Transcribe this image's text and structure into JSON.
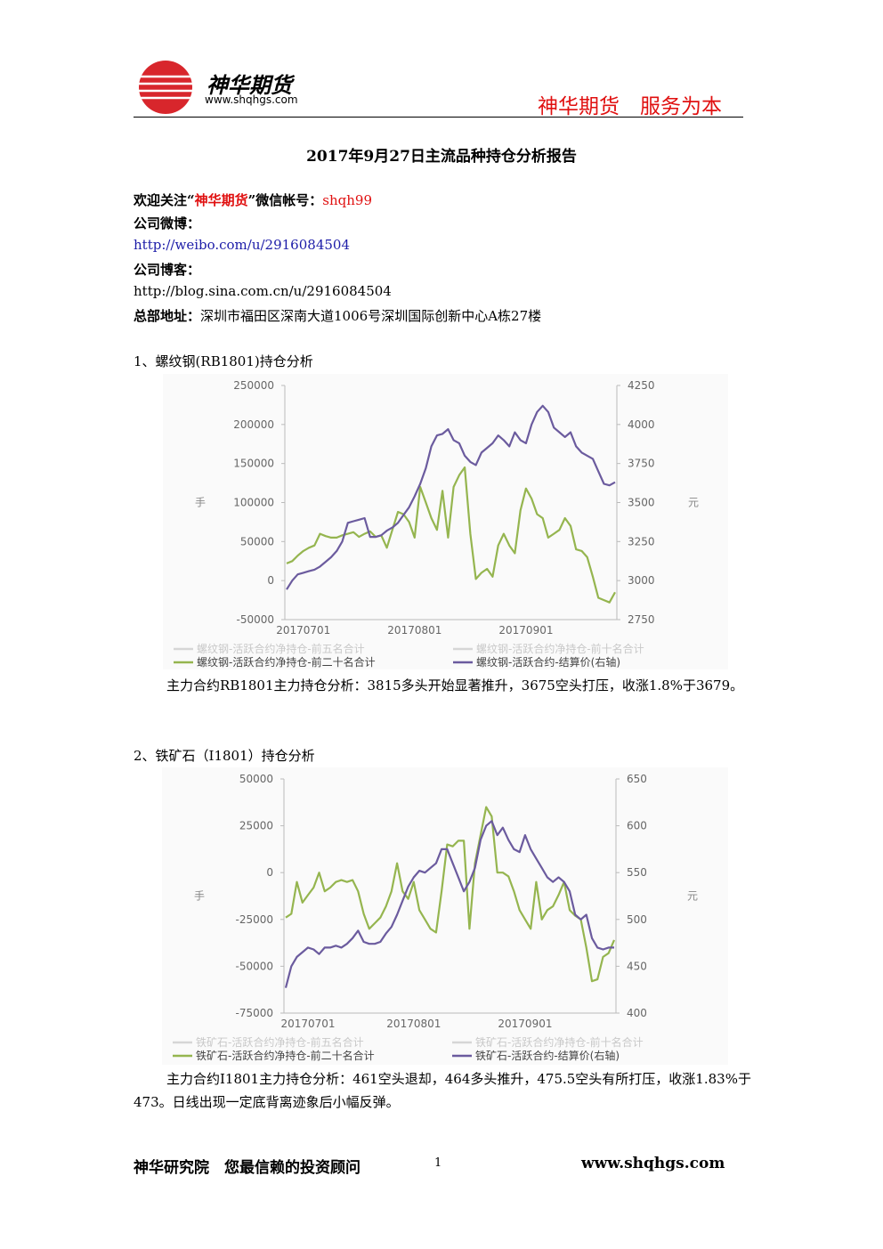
{
  "header": {
    "logo_name": "神华期货",
    "logo_url": "www.shqhgs.com",
    "slogan": "神华期货　服务为本"
  },
  "title": "2017年9月27日主流品种持仓分析报告",
  "intro": {
    "wechat": {
      "prefix": "欢迎关注“",
      "name": "神华期货",
      "middle": "”微信帐号：",
      "account": "shqh99"
    },
    "weibo_label": "公司微博：",
    "weibo_url": "http://weibo.com/u/2916084504",
    "blog_label": "公司博客：",
    "blog_url": "http://blog.sina.com.cn/u/2916084504",
    "address_label": "总部地址：",
    "address": "深圳市福田区深南大道1006号深圳国际创新中心A栋27楼"
  },
  "sections": [
    {
      "heading": "1、螺纹钢(RB1801)持仓分析",
      "analysis": "主力合约RB1801主力持仓分析：3815多头开始显著推升，3675空头打压，收涨1.8%于3679。"
    },
    {
      "heading": "2、铁矿石（I1801）持仓分析",
      "analysis": "主力合约I1801主力持仓分析：461空头退却，464多头推升，475.5空头有所打压，收涨1.83%于473。日线出现一定底背离迹象后小幅反弹。"
    }
  ],
  "footer": {
    "left": "神华研究院　您最信赖的投资顾问",
    "page": "1",
    "url": "www.shqhgs.com"
  },
  "chart_data": [
    {
      "type": "line",
      "ylabel": "手",
      "y2label": "元",
      "grid": false,
      "ylim": [
        -50000,
        250000
      ],
      "yticks": [
        -50000,
        0,
        50000,
        100000,
        150000,
        200000,
        250000
      ],
      "y2lim": [
        2750,
        4250
      ],
      "y2ticks": [
        2750,
        3000,
        3250,
        3500,
        3750,
        4000,
        4250
      ],
      "categories": [
        null,
        null,
        null,
        "20170701",
        null,
        null,
        null,
        null,
        null,
        null,
        null,
        null,
        null,
        null,
        null,
        null,
        null,
        null,
        null,
        null,
        null,
        null,
        null,
        "20170801",
        null,
        null,
        null,
        null,
        null,
        null,
        null,
        null,
        null,
        null,
        null,
        null,
        null,
        null,
        null,
        null,
        null,
        null,
        null,
        "20170901",
        null,
        null,
        null,
        null,
        null,
        null,
        null,
        null,
        null,
        null,
        null,
        null,
        null,
        null,
        null,
        null
      ],
      "series": [
        {
          "name": "螺纹钢-活跃合约净持仓-前五名合计",
          "color": "#d6d6d6",
          "values": [
            null,
            null,
            null,
            null,
            null,
            null,
            null,
            null,
            null,
            null,
            null,
            null,
            null,
            null,
            null,
            null,
            null,
            null,
            null,
            null,
            null,
            null,
            null,
            null,
            null,
            null,
            null,
            null,
            null,
            null,
            null,
            null,
            null,
            null,
            null,
            null,
            null,
            null,
            null,
            null,
            null,
            null,
            null,
            null,
            null,
            null,
            null,
            null,
            null,
            null,
            null,
            null,
            null,
            null,
            null,
            null,
            null,
            null,
            null,
            null
          ]
        },
        {
          "name": "螺纹钢-活跃合约净持仓-前十名合计",
          "color": "#d6d6d6",
          "values": [
            null,
            null,
            null,
            null,
            null,
            null,
            null,
            null,
            null,
            null,
            null,
            null,
            null,
            null,
            null,
            null,
            null,
            null,
            null,
            null,
            null,
            null,
            null,
            null,
            null,
            null,
            null,
            null,
            null,
            null,
            null,
            null,
            null,
            null,
            null,
            null,
            null,
            null,
            null,
            null,
            null,
            null,
            null,
            null,
            null,
            null,
            null,
            null,
            null,
            null,
            null,
            null,
            null,
            null,
            null,
            null,
            null,
            null,
            null,
            null
          ]
        },
        {
          "name": "螺纹钢-活跃合约净持仓-前二十名合计",
          "color": "#95b54f",
          "values": [
            22000,
            25000,
            32000,
            38000,
            42000,
            45000,
            60000,
            57000,
            55000,
            55000,
            58000,
            60000,
            62000,
            56000,
            60000,
            63000,
            56000,
            58000,
            42000,
            65000,
            88000,
            85000,
            75000,
            55000,
            120000,
            100000,
            80000,
            65000,
            115000,
            55000,
            120000,
            135000,
            145000,
            60000,
            2000,
            10000,
            15000,
            5000,
            45000,
            60000,
            45000,
            35000,
            90000,
            118000,
            105000,
            85000,
            80000,
            55000,
            60000,
            65000,
            80000,
            70000,
            40000,
            38000,
            30000,
            5000,
            -22000,
            -25000,
            -28000,
            -15000
          ]
        },
        {
          "name": "螺纹钢-活跃合约-结算价(右轴)",
          "color": "#6b5b9e",
          "axis": "y2",
          "values": [
            2943,
            3000,
            3040,
            3050,
            3060,
            3070,
            3090,
            3120,
            3150,
            3190,
            3250,
            3370,
            3380,
            3390,
            3400,
            3280,
            3280,
            3290,
            3320,
            3340,
            3370,
            3420,
            3470,
            3540,
            3620,
            3720,
            3860,
            3930,
            3940,
            3970,
            3900,
            3880,
            3800,
            3760,
            3740,
            3820,
            3850,
            3880,
            3930,
            3900,
            3860,
            3950,
            3900,
            3880,
            4000,
            4080,
            4120,
            4080,
            3980,
            3950,
            3920,
            3950,
            3860,
            3820,
            3800,
            3780,
            3700,
            3620,
            3610,
            3630
          ]
        }
      ]
    },
    {
      "type": "line",
      "ylabel": "手",
      "y2label": "元",
      "grid": false,
      "ylim": [
        -75000,
        50000
      ],
      "yticks": [
        -75000,
        -50000,
        -25000,
        0,
        25000,
        50000
      ],
      "y2lim": [
        400,
        650
      ],
      "y2ticks": [
        400,
        450,
        500,
        550,
        600,
        650
      ],
      "categories": [
        null,
        null,
        null,
        null,
        "20170701",
        null,
        null,
        null,
        null,
        null,
        null,
        null,
        null,
        null,
        null,
        null,
        null,
        null,
        null,
        null,
        null,
        null,
        null,
        "20170801",
        null,
        null,
        null,
        null,
        null,
        null,
        null,
        null,
        null,
        null,
        null,
        null,
        null,
        null,
        null,
        null,
        null,
        null,
        null,
        "20170901",
        null,
        null,
        null,
        null,
        null,
        null,
        null,
        null,
        null,
        null,
        null,
        null,
        null,
        null,
        null,
        null
      ],
      "series": [
        {
          "name": "铁矿石-活跃合约净持仓-前五名合计",
          "color": "#d6d6d6",
          "values": [
            null,
            null,
            null,
            null,
            null,
            null,
            null,
            null,
            null,
            null,
            null,
            null,
            null,
            null,
            null,
            null,
            null,
            null,
            null,
            null,
            null,
            null,
            null,
            null,
            null,
            null,
            null,
            null,
            null,
            null,
            null,
            null,
            null,
            null,
            null,
            null,
            null,
            null,
            null,
            null,
            null,
            null,
            null,
            null,
            null,
            null,
            null,
            null,
            null,
            null,
            null,
            null,
            null,
            null,
            null,
            null,
            null,
            null,
            null,
            null
          ]
        },
        {
          "name": "铁矿石-活跃合约净持仓-前十名合计",
          "color": "#d6d6d6",
          "values": [
            null,
            null,
            null,
            null,
            null,
            null,
            null,
            null,
            null,
            null,
            null,
            null,
            null,
            null,
            null,
            null,
            null,
            null,
            null,
            null,
            null,
            null,
            null,
            null,
            null,
            null,
            null,
            null,
            null,
            null,
            null,
            null,
            null,
            null,
            null,
            null,
            null,
            null,
            null,
            null,
            null,
            null,
            null,
            null,
            null,
            null,
            null,
            null,
            null,
            null,
            null,
            null,
            null,
            null,
            null,
            null,
            null,
            null,
            null,
            null
          ]
        },
        {
          "name": "铁矿石-活跃合约净持仓-前二十名合计",
          "color": "#95b54f",
          "values": [
            -24000,
            -22000,
            -5000,
            -16000,
            -12000,
            -8000,
            0,
            -10000,
            -8000,
            -5000,
            -4000,
            -5000,
            -4000,
            -10000,
            -22000,
            -30000,
            -27000,
            -24000,
            -18000,
            -10000,
            5000,
            -10000,
            -14000,
            -5000,
            -20000,
            -25000,
            -30000,
            -32000,
            -10000,
            15000,
            14000,
            17000,
            17000,
            -30000,
            5000,
            20000,
            35000,
            30000,
            0,
            0,
            -2000,
            -10000,
            -20000,
            -25000,
            -30000,
            -5000,
            -25000,
            -20000,
            -18000,
            -12000,
            -5000,
            -20000,
            -23000,
            -25000,
            -40000,
            -58000,
            -57000,
            -45000,
            -43000,
            -36000
          ]
        },
        {
          "name": "铁矿石-活跃合约-结算价(右轴)",
          "color": "#6b5b9e",
          "axis": "y2",
          "values": [
            427,
            450,
            460,
            465,
            470,
            468,
            463,
            470,
            470,
            472,
            470,
            474,
            480,
            488,
            476,
            474,
            474,
            476,
            485,
            492,
            505,
            520,
            535,
            545,
            552,
            550,
            555,
            560,
            575,
            575,
            560,
            545,
            530,
            540,
            555,
            585,
            600,
            605,
            590,
            598,
            585,
            575,
            572,
            590,
            575,
            565,
            555,
            545,
            540,
            545,
            540,
            530,
            505,
            500,
            505,
            480,
            470,
            468,
            470,
            470
          ]
        }
      ]
    }
  ]
}
